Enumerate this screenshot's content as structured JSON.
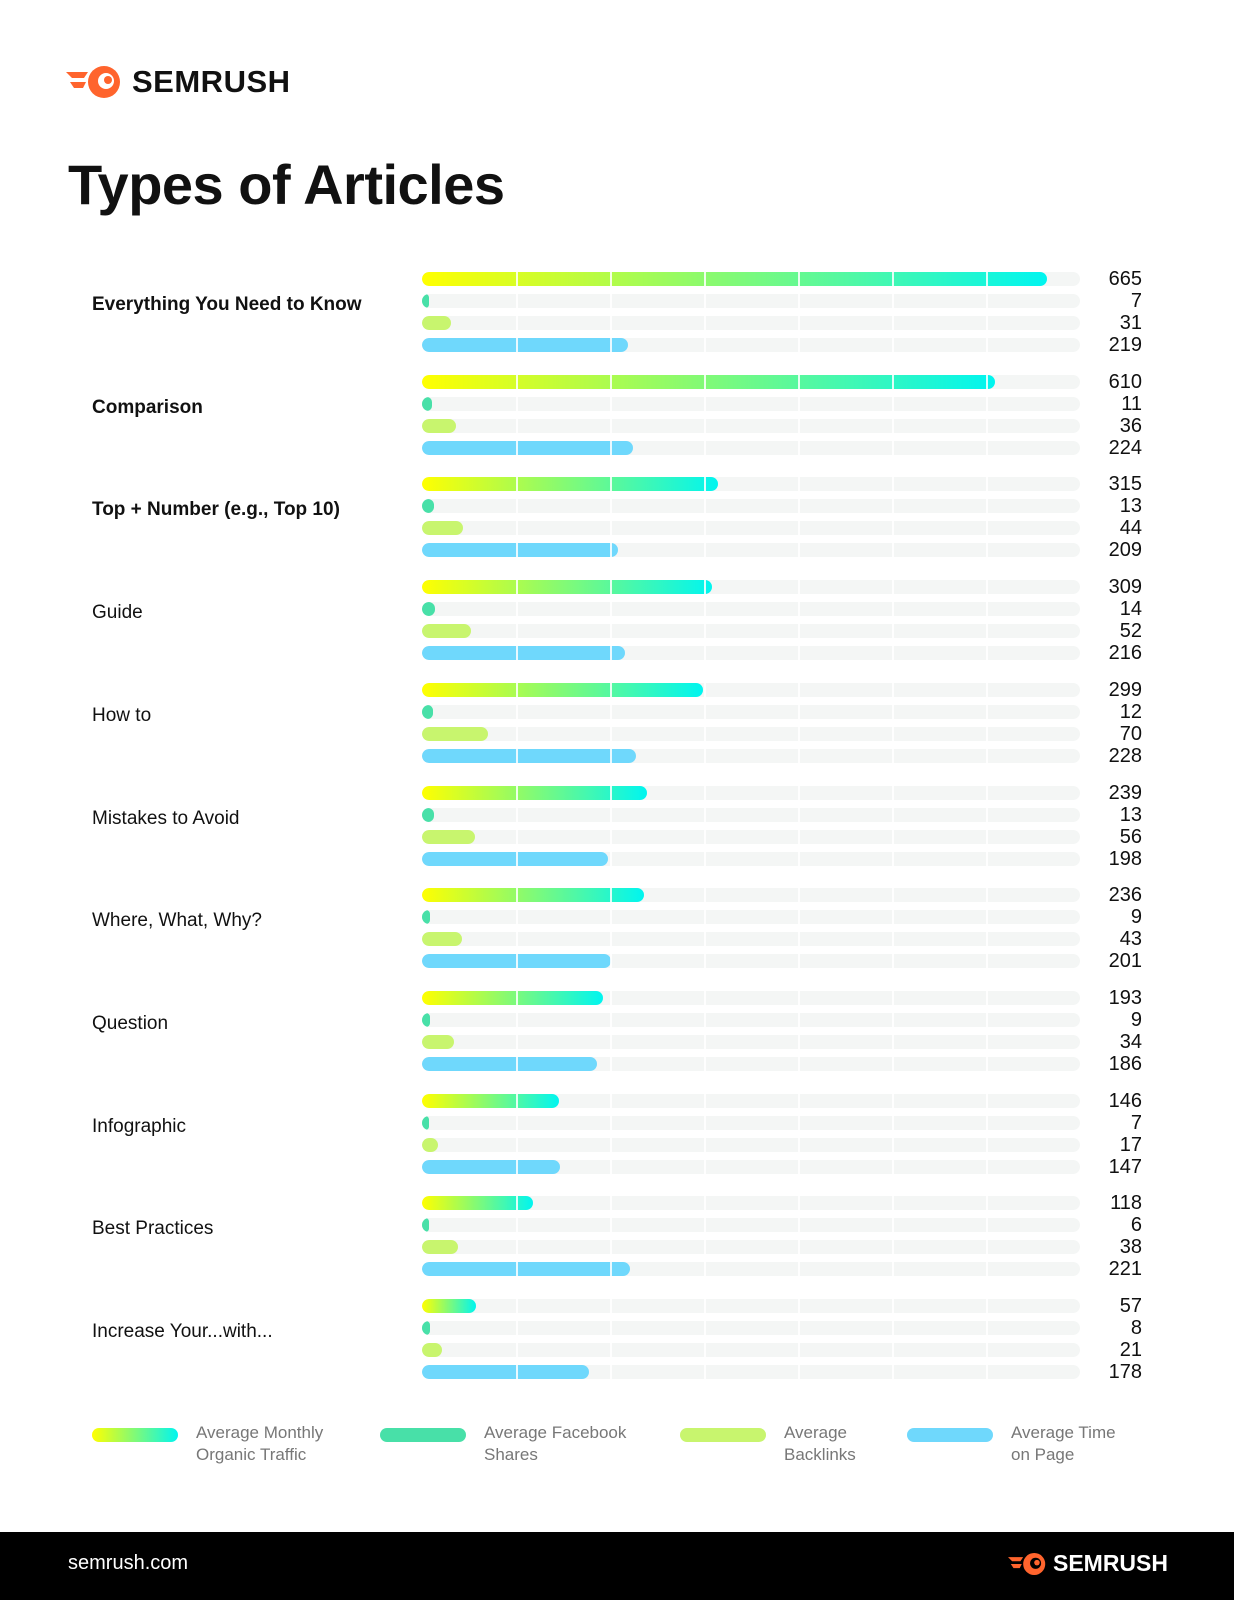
{
  "brand": "SEMRUSH",
  "footer": {
    "site": "semrush.com",
    "brand": "SEMRUSH"
  },
  "colors": {
    "brand": "#ff642d",
    "traffic_start": "#ffff00",
    "traffic_end": "#00f5f0",
    "facebook": "#48e0a8",
    "backlinks": "#c8f56e",
    "time": "#6fd8fc",
    "track": "#f4f6f5"
  },
  "chart_data": {
    "type": "bar",
    "orientation": "horizontal",
    "title": "Types of Articles",
    "categories": [
      "Everything You Need to Know",
      "Comparison",
      "Top + Number (e.g., Top 10)",
      "Guide",
      "How to",
      "Mistakes to Avoid",
      "Where, What, Why?",
      "Question",
      "Infographic",
      "Best Practices",
      "Increase Your...with..."
    ],
    "series": [
      {
        "name": "Average Monthly Organic Traffic",
        "values": [
          665,
          610,
          315,
          309,
          299,
          239,
          236,
          193,
          146,
          118,
          57
        ]
      },
      {
        "name": "Average Facebook Shares",
        "values": [
          7,
          11,
          13,
          14,
          12,
          13,
          9,
          9,
          7,
          6,
          8
        ]
      },
      {
        "name": "Average Backlinks",
        "values": [
          31,
          36,
          44,
          52,
          70,
          56,
          43,
          34,
          17,
          38,
          21
        ]
      },
      {
        "name": "Average Time on Page",
        "values": [
          219,
          224,
          209,
          216,
          228,
          198,
          201,
          186,
          147,
          221,
          178
        ]
      }
    ],
    "xlim": [
      0,
      700
    ],
    "legend": "bottom"
  }
}
